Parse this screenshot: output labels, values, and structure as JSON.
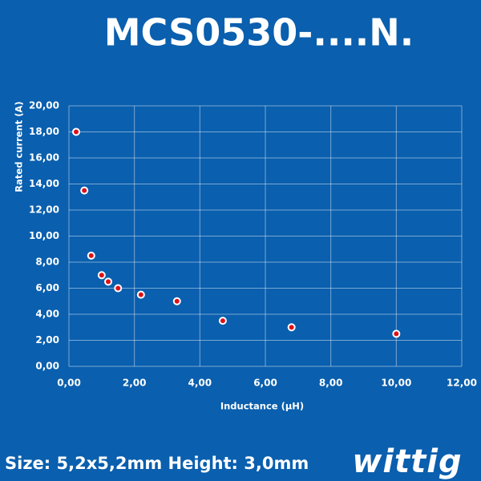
{
  "chart_data": {
    "type": "scatter",
    "title": "MCS0530-....N.",
    "x_label": "Inductance (µH)",
    "y_label": "Rated current (A)",
    "series": [
      {
        "name": "MCS0530",
        "color": "#e0101a",
        "x": [
          0.22,
          0.47,
          0.68,
          1.0,
          1.2,
          1.5,
          2.2,
          3.3,
          4.7,
          6.8,
          10
        ],
        "values": [
          18,
          13.5,
          8.5,
          7.0,
          6.5,
          6.0,
          5.5,
          5.0,
          3.5,
          3.0,
          2.5
        ]
      }
    ],
    "xlim": [
      0,
      12
    ],
    "ylim": [
      0,
      20
    ],
    "xticks": [
      {
        "value": 0,
        "label": "0,00"
      },
      {
        "value": 2,
        "label": "2,00"
      },
      {
        "value": 4,
        "label": "4,00"
      },
      {
        "value": 6,
        "label": "6,00"
      },
      {
        "value": 8,
        "label": "8,00"
      },
      {
        "value": 10,
        "label": "10,00"
      },
      {
        "value": 12,
        "label": "12,00"
      }
    ],
    "yticks": [
      {
        "value": 0,
        "label": "0,00"
      },
      {
        "value": 2,
        "label": "2,00"
      },
      {
        "value": 4,
        "label": "4,00"
      },
      {
        "value": 6,
        "label": "6,00"
      },
      {
        "value": 8,
        "label": "8,00"
      },
      {
        "value": 10,
        "label": "10,00"
      },
      {
        "value": 12,
        "label": "12,00"
      },
      {
        "value": 14,
        "label": "14,00"
      },
      {
        "value": 16,
        "label": "16,00"
      },
      {
        "value": 18,
        "label": "18,00"
      },
      {
        "value": 20,
        "label": "20,00"
      }
    ],
    "grid": true
  },
  "footer": {
    "text": "Size: 5,2x5,2mm Height: 3,0mm",
    "logo": "wittig"
  }
}
